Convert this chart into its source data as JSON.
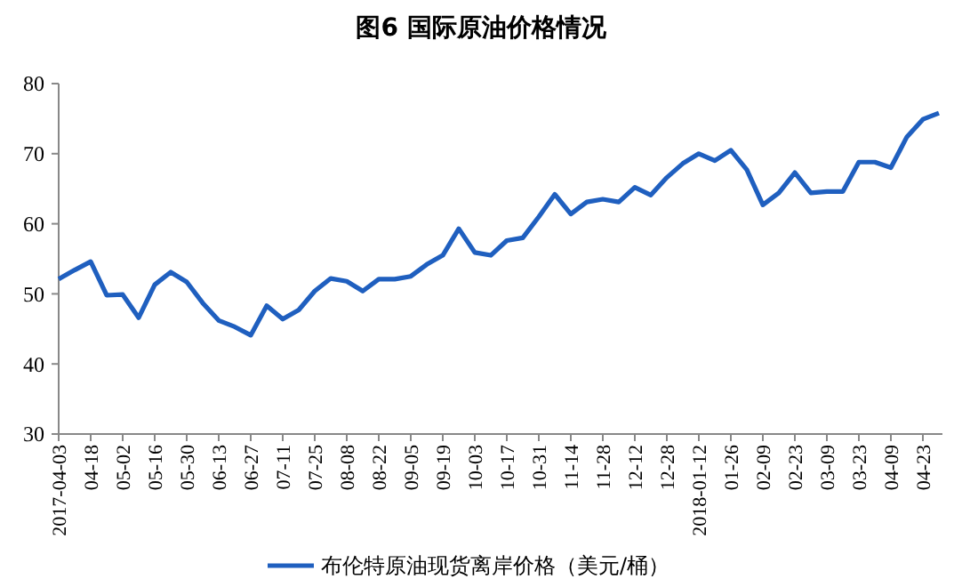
{
  "chart_data": {
    "type": "line",
    "title": "图6 国际原油价格情况",
    "categories": [
      "2017-04-03",
      null,
      "04-18",
      null,
      "05-02",
      null,
      "05-16",
      null,
      "05-30",
      null,
      "06-13",
      null,
      "06-27",
      null,
      "07-11",
      null,
      "07-25",
      null,
      "08-08",
      null,
      "08-22",
      null,
      "09-05",
      null,
      "09-19",
      null,
      "10-03",
      null,
      "10-17",
      null,
      "10-31",
      null,
      "11-14",
      null,
      "11-28",
      null,
      "12-12",
      null,
      "12-28",
      null,
      "2018-01-12",
      null,
      "01-26",
      null,
      "02-09",
      null,
      "02-23",
      null,
      "03-09",
      null,
      "03-23",
      null,
      "04-09",
      null,
      "04-23",
      null
    ],
    "series": [
      {
        "name": "布伦特原油现货离岸价格（美元/桶）",
        "color": "#1f5fbf",
        "values": [
          52.1,
          53.4,
          54.6,
          49.8,
          49.9,
          46.6,
          51.3,
          53.1,
          51.7,
          48.7,
          46.2,
          45.3,
          44.1,
          48.3,
          46.4,
          47.7,
          50.4,
          52.2,
          51.8,
          50.4,
          52.1,
          52.1,
          52.5,
          54.2,
          55.5,
          59.3,
          55.9,
          55.5,
          57.6,
          58.0,
          61.0,
          64.2,
          61.4,
          63.1,
          63.5,
          63.1,
          65.2,
          64.1,
          66.6,
          68.6,
          70.0,
          69.0,
          70.5,
          67.7,
          62.7,
          64.4,
          67.3,
          64.4,
          64.6,
          64.6,
          68.8,
          68.8,
          68.0,
          72.4,
          74.9,
          75.8
        ]
      }
    ],
    "ylim": [
      30,
      80
    ],
    "yticks": [
      30,
      40,
      50,
      60,
      70,
      80
    ],
    "grid": false,
    "legend": "bottom",
    "marker": "none",
    "line_style": "solid"
  }
}
